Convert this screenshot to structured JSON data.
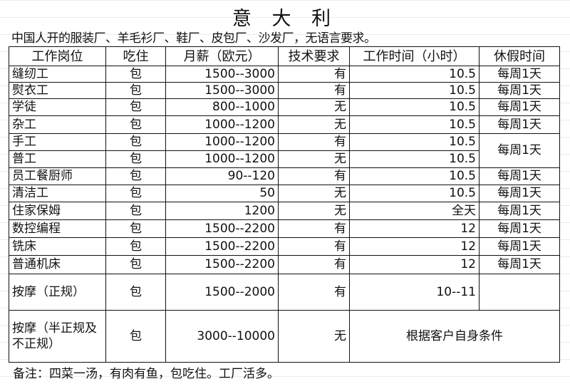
{
  "title": "意 大 利",
  "subtitle": "中国人开的服装厂、羊毛衫厂、鞋厂、皮包厂、沙发厂，无语言要求。",
  "headers": [
    "工作岗位",
    "吃住",
    "月薪（欧元）",
    "技术要求",
    "工作时间（小时）",
    "休假时间"
  ],
  "rows": [
    {
      "job": "缝纫工",
      "board": "包",
      "salary": "1500--3000",
      "skill": "有",
      "hours": "10.5",
      "rest": "每周1天"
    },
    {
      "job": "熨衣工",
      "board": "包",
      "salary": "1500--3000",
      "skill": "有",
      "hours": "10.5",
      "rest": "每周1天"
    },
    {
      "job": "学徒",
      "board": "包",
      "salary": "800--1000",
      "skill": "无",
      "hours": "10.5",
      "rest": "每周1天"
    },
    {
      "job": "杂工",
      "board": "包",
      "salary": "1000--1200",
      "skill": "无",
      "hours": "10.5",
      "rest": "每周1天"
    },
    {
      "job": "手工",
      "board": "包",
      "salary": "1000--1200",
      "skill": "有",
      "hours": "10.5",
      "rest": "每周1天"
    },
    {
      "job": "普工",
      "board": "包",
      "salary": "1000--1200",
      "skill": "无",
      "hours": "10.5",
      "rest": ""
    },
    {
      "job": "员工餐厨师",
      "board": "包",
      "salary": "90--120",
      "skill": "有",
      "hours": "10.5",
      "rest": "每周1天"
    },
    {
      "job": "清洁工",
      "board": "包",
      "salary": "50",
      "skill": "无",
      "hours": "10.5",
      "rest": "每周1天"
    },
    {
      "job": "住家保姆",
      "board": "包",
      "salary": "1200",
      "skill": "无",
      "hours": "全天",
      "rest": "每周1天"
    },
    {
      "job": "数控编程",
      "board": "包",
      "salary": "1500--2200",
      "skill": "有",
      "hours": "12",
      "rest": "每周1天"
    },
    {
      "job": "铣床",
      "board": "包",
      "salary": "1500--2200",
      "skill": "有",
      "hours": "12",
      "rest": "每周1天"
    },
    {
      "job": "普通机床",
      "board": "包",
      "salary": "1500--2200",
      "skill": "有",
      "hours": "12",
      "rest": "每周1天"
    },
    {
      "job": "按摩（正规）",
      "board": "包",
      "salary": "1500--2000",
      "skill": "有",
      "hours": "10--11",
      "rest": ""
    },
    {
      "job": "按摩（半正规及不正规）",
      "board": "包",
      "salary": "3000--10000",
      "skill": "无",
      "hours": "根据客户自身条件",
      "rest": ""
    }
  ],
  "note": "备注：四菜一汤，有肉有鱼，包吃住。工厂活多。"
}
